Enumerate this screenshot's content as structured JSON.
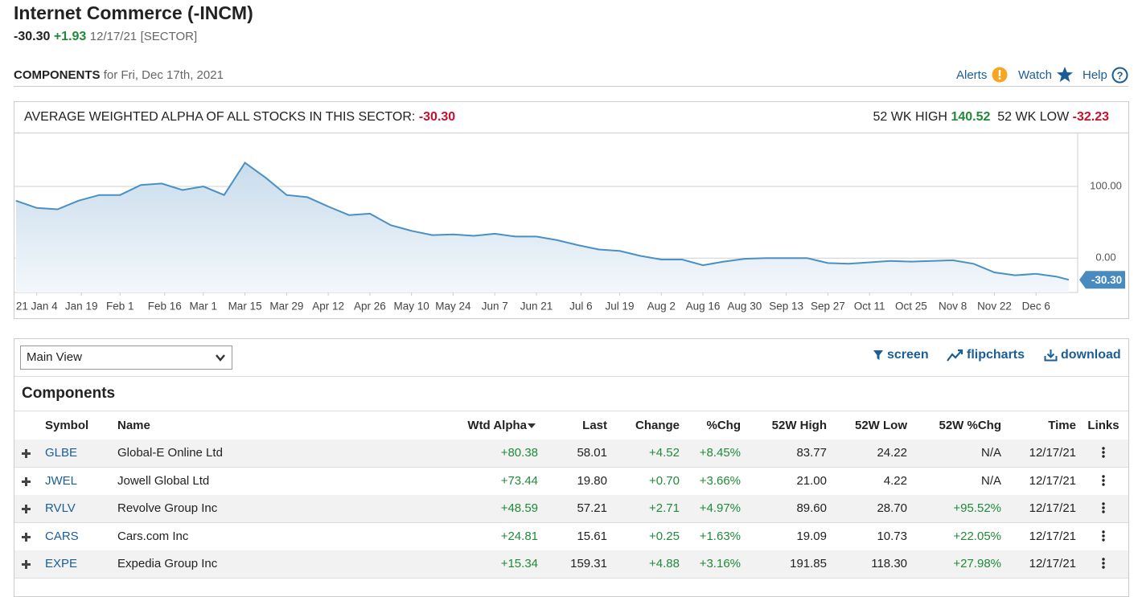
{
  "header": {
    "title": "Internet Commerce (-INCM)",
    "price": "-30.30",
    "change": "+1.93",
    "date": "12/17/21",
    "tag": "[SECTOR]"
  },
  "section": {
    "title": "COMPONENTS",
    "subtitle": "for Fri, Dec 17th, 2021",
    "links": [
      "Alerts",
      "Watch",
      "Help"
    ]
  },
  "chart": {
    "type": "line",
    "label": "AVERAGE WEIGHTED ALPHA OF ALL STOCKS IN THIS SECTOR:",
    "value": "-30.30",
    "high_label": "52 WK HIGH",
    "high": "140.52",
    "low_label": "52 WK LOW",
    "low": "-32.23",
    "color": "#4a90c2",
    "grid": true,
    "x": [
      -7,
      0,
      7,
      14,
      21,
      28,
      35,
      42,
      49,
      56,
      63,
      70,
      77,
      84,
      91,
      98,
      105,
      112,
      119,
      126,
      133,
      140,
      147,
      154,
      161,
      168,
      175,
      182,
      189,
      196,
      203,
      210,
      217,
      224,
      231,
      238,
      245,
      252,
      259,
      266,
      273,
      280,
      287,
      294,
      301,
      308,
      315,
      322,
      329,
      336,
      343,
      347
    ],
    "values": [
      80,
      70,
      68,
      80,
      88,
      88,
      102,
      104,
      95,
      100,
      88,
      133,
      112,
      88,
      85,
      72,
      60,
      62,
      46,
      38,
      32,
      33,
      31,
      34,
      30,
      30,
      25,
      18,
      12,
      10,
      3,
      -2,
      -2,
      -10,
      -5,
      -1,
      0,
      0,
      0,
      -7,
      -8,
      -6,
      -4,
      -5,
      -4,
      -3,
      -8,
      -20,
      -24,
      -22,
      -26,
      -30.3
    ],
    "xlim": [
      -7.5,
      350
    ],
    "ylim": [
      -48,
      174
    ],
    "xticks": [
      {
        "value": 0,
        "label": "21 Jan 4"
      },
      {
        "value": 15,
        "label": "Jan 19"
      },
      {
        "value": 28,
        "label": "Feb 1"
      },
      {
        "value": 43,
        "label": "Feb 16"
      },
      {
        "value": 56,
        "label": "Mar 1"
      },
      {
        "value": 70,
        "label": "Mar 15"
      },
      {
        "value": 84,
        "label": "Mar 29"
      },
      {
        "value": 98,
        "label": "Apr 12"
      },
      {
        "value": 112,
        "label": "Apr 26"
      },
      {
        "value": 126,
        "label": "May 10"
      },
      {
        "value": 140,
        "label": "May 24"
      },
      {
        "value": 154,
        "label": "Jun 7"
      },
      {
        "value": 168,
        "label": "Jun 21"
      },
      {
        "value": 183,
        "label": "Jul 6"
      },
      {
        "value": 196,
        "label": "Jul 19"
      },
      {
        "value": 210,
        "label": "Aug 2"
      },
      {
        "value": 224,
        "label": "Aug 16"
      },
      {
        "value": 238,
        "label": "Aug 30"
      },
      {
        "value": 252,
        "label": "Sep 13"
      },
      {
        "value": 266,
        "label": "Sep 27"
      },
      {
        "value": 280,
        "label": "Oct 11"
      },
      {
        "value": 294,
        "label": "Oct 25"
      },
      {
        "value": 308,
        "label": "Nov 8"
      },
      {
        "value": 322,
        "label": "Nov 22"
      },
      {
        "value": 336,
        "label": "Dec 6"
      }
    ],
    "yticks": [
      {
        "value": 0,
        "label": "0.00"
      },
      {
        "value": 100,
        "label": "100.00"
      }
    ]
  },
  "table": {
    "view": "Main View",
    "actions": [
      "screen",
      "flipcharts",
      "download"
    ],
    "title": "Components",
    "columns": [
      "Symbol",
      "Name",
      "Wtd Alpha",
      "Last",
      "Change",
      "%Chg",
      "52W High",
      "52W Low",
      "52W %Chg",
      "Time",
      "Links"
    ],
    "rows": [
      [
        "GLBE",
        "Global-E Online Ltd",
        "+80.38",
        "58.01",
        "+4.52",
        "+8.45%",
        "83.77",
        "24.22",
        "N/A",
        "12/17/21"
      ],
      [
        "JWEL",
        "Jowell Global Ltd",
        "+73.44",
        "19.80",
        "+0.70",
        "+3.66%",
        "21.00",
        "4.22",
        "N/A",
        "12/17/21"
      ],
      [
        "RVLV",
        "Revolve Group Inc",
        "+48.59",
        "57.21",
        "+2.71",
        "+4.97%",
        "89.60",
        "28.70",
        "+95.52%",
        "12/17/21"
      ],
      [
        "CARS",
        "Cars.com Inc",
        "+24.81",
        "15.61",
        "+0.25",
        "+1.63%",
        "19.09",
        "10.73",
        "+22.05%",
        "12/17/21"
      ],
      [
        "EXPE",
        "Expedia Group Inc",
        "+15.34",
        "159.31",
        "+4.88",
        "+3.16%",
        "191.85",
        "118.30",
        "+27.98%",
        "12/17/21"
      ]
    ]
  }
}
